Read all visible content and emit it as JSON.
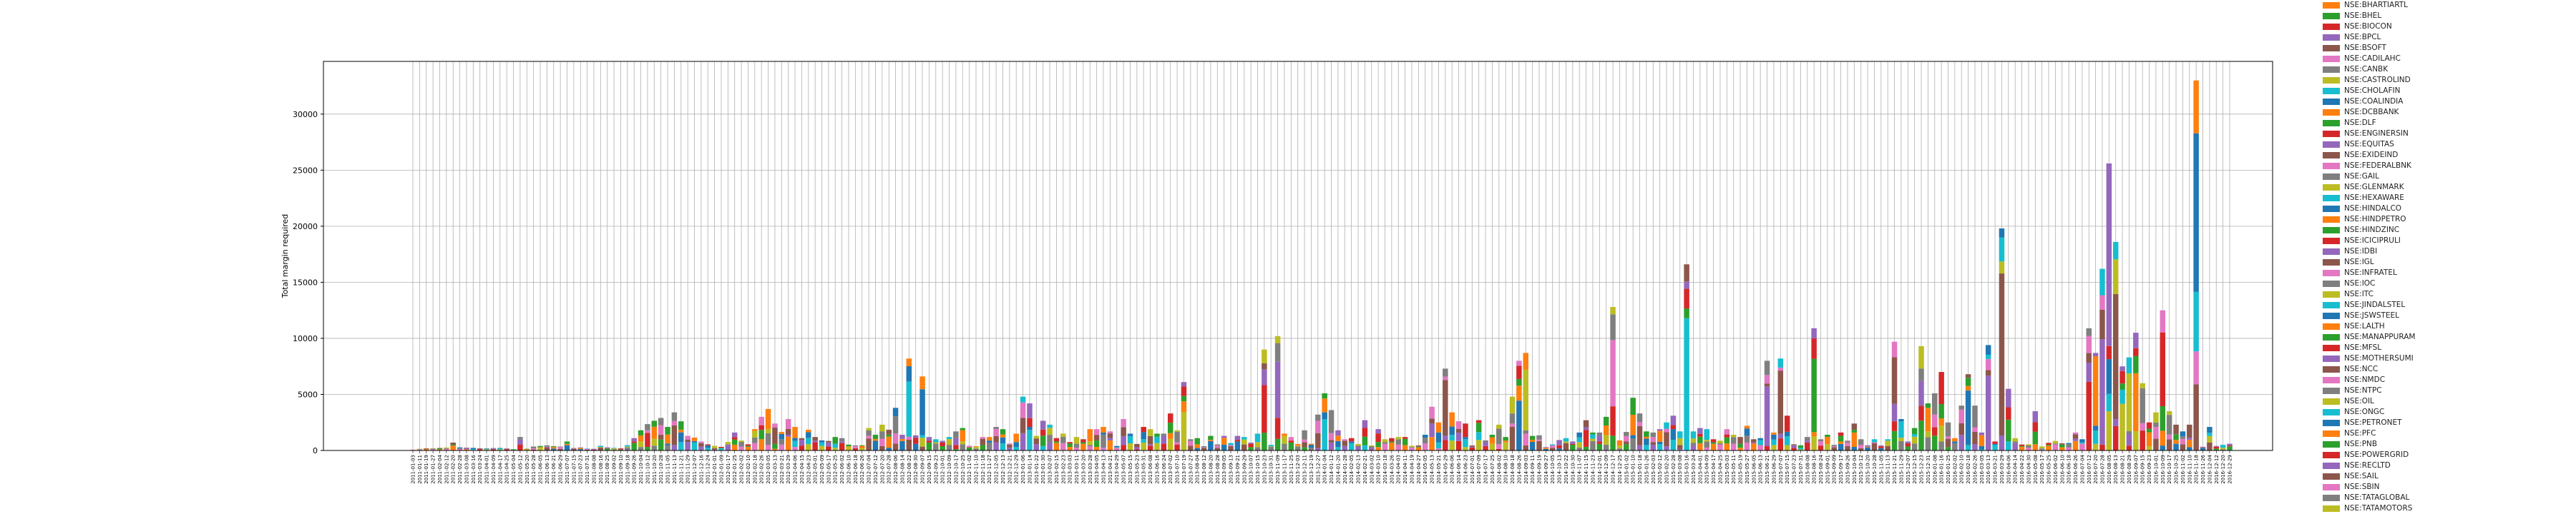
{
  "chart_data": {
    "type": "bar",
    "stacked": true,
    "ylabel": "Total margin required",
    "xlabel": "",
    "ylim": [
      0,
      34700
    ],
    "yticks": [
      0,
      5000,
      10000,
      15000,
      20000,
      25000,
      30000
    ],
    "grid": true,
    "legend_placement": "right",
    "date_range": [
      "2011-01-03",
      "2016-12-29"
    ],
    "n_bars": 272,
    "legend": [
      {
        "name": "NSE:BHARTIARTL",
        "color": "#ff7f0e"
      },
      {
        "name": "NSE:BHEL",
        "color": "#2ca02c"
      },
      {
        "name": "NSE:BIOCON",
        "color": "#d62728"
      },
      {
        "name": "NSE:BPCL",
        "color": "#9467bd"
      },
      {
        "name": "NSE:BSOFT",
        "color": "#8c564b"
      },
      {
        "name": "NSE:CADILAHC",
        "color": "#e377c2"
      },
      {
        "name": "NSE:CANBK",
        "color": "#7f7f7f"
      },
      {
        "name": "NSE:CASTROLIND",
        "color": "#bcbd22"
      },
      {
        "name": "NSE:CHOLAFIN",
        "color": "#17becf"
      },
      {
        "name": "NSE:COALINDIA",
        "color": "#1f77b4"
      },
      {
        "name": "NSE:DCBBANK",
        "color": "#ff7f0e"
      },
      {
        "name": "NSE:DLF",
        "color": "#2ca02c"
      },
      {
        "name": "NSE:ENGINERSIN",
        "color": "#d62728"
      },
      {
        "name": "NSE:EQUITAS",
        "color": "#9467bd"
      },
      {
        "name": "NSE:EXIDEIND",
        "color": "#8c564b"
      },
      {
        "name": "NSE:FEDERALBNK",
        "color": "#e377c2"
      },
      {
        "name": "NSE:GAIL",
        "color": "#7f7f7f"
      },
      {
        "name": "NSE:GLENMARK",
        "color": "#bcbd22"
      },
      {
        "name": "NSE:HEXAWARE",
        "color": "#17becf"
      },
      {
        "name": "NSE:HINDALCO",
        "color": "#1f77b4"
      },
      {
        "name": "NSE:HINDPETRO",
        "color": "#ff7f0e"
      },
      {
        "name": "NSE:HINDZINC",
        "color": "#2ca02c"
      },
      {
        "name": "NSE:ICICIPRULI",
        "color": "#d62728"
      },
      {
        "name": "NSE:IDBI",
        "color": "#9467bd"
      },
      {
        "name": "NSE:IGL",
        "color": "#8c564b"
      },
      {
        "name": "NSE:INFRATEL",
        "color": "#e377c2"
      },
      {
        "name": "NSE:IOC",
        "color": "#7f7f7f"
      },
      {
        "name": "NSE:ITC",
        "color": "#bcbd22"
      },
      {
        "name": "NSE:JINDALSTEL",
        "color": "#17becf"
      },
      {
        "name": "NSE:JSWSTEEL",
        "color": "#1f77b4"
      },
      {
        "name": "NSE:LALTH",
        "color": "#ff7f0e"
      },
      {
        "name": "NSE:MANAPPURAM",
        "color": "#2ca02c"
      },
      {
        "name": "NSE:MFSL",
        "color": "#d62728"
      },
      {
        "name": "NSE:MOTHERSUMI",
        "color": "#9467bd"
      },
      {
        "name": "NSE:NCC",
        "color": "#8c564b"
      },
      {
        "name": "NSE:NMDC",
        "color": "#e377c2"
      },
      {
        "name": "NSE:NTPC",
        "color": "#7f7f7f"
      },
      {
        "name": "NSE:OIL",
        "color": "#bcbd22"
      },
      {
        "name": "NSE:ONGC",
        "color": "#17becf"
      },
      {
        "name": "NSE:PETRONET",
        "color": "#1f77b4"
      },
      {
        "name": "NSE:PFC",
        "color": "#ff7f0e"
      },
      {
        "name": "NSE:PNB",
        "color": "#2ca02c"
      },
      {
        "name": "NSE:POWERGRID",
        "color": "#d62728"
      },
      {
        "name": "NSE:RECLTD",
        "color": "#9467bd"
      },
      {
        "name": "NSE:SAIL",
        "color": "#8c564b"
      },
      {
        "name": "NSE:SBIN",
        "color": "#e377c2"
      },
      {
        "name": "NSE:TATAGLOBAL",
        "color": "#7f7f7f"
      },
      {
        "name": "NSE:TATAMOTORS",
        "color": "#bcbd22"
      }
    ],
    "totals": [
      50,
      150,
      180,
      200,
      220,
      260,
      700,
      280,
      250,
      230,
      200,
      180,
      210,
      220,
      170,
      120,
      1200,
      150,
      350,
      400,
      460,
      380,
      350,
      800,
      220,
      270,
      180,
      150,
      420,
      280,
      240,
      200,
      470,
      1100,
      1800,
      2350,
      2650,
      2900,
      2100,
      3400,
      2600,
      1300,
      1150,
      800,
      550,
      410,
      320,
      760,
      1600,
      880,
      550,
      1900,
      3000,
      3700,
      2400,
      1650,
      2800,
      2100,
      1100,
      1850,
      1200,
      900,
      850,
      1200,
      1100,
      520,
      450,
      470,
      2000,
      1400,
      2300,
      1850,
      3800,
      1400,
      8200,
      1350,
      6600,
      1200,
      1000,
      860,
      1200,
      1700,
      2000,
      420,
      380,
      1200,
      1200,
      2100,
      1900,
      620,
      1500,
      4800,
      4200,
      1300,
      2650,
      2300,
      1100,
      1500,
      750,
      1200,
      1000,
      1900,
      1900,
      2100,
      1700,
      400,
      2800,
      1500,
      580,
      2100,
      1900,
      1500,
      1500,
      3300,
      1800,
      6100,
      1000,
      1100,
      380,
      1300,
      540,
      1300,
      660,
      1300,
      1200,
      700,
      1500,
      9000,
      500,
      10200,
      1500,
      1200,
      580,
      1800,
      600,
      3200,
      5100,
      3600,
      1800,
      1000,
      1100,
      580,
      2700,
      450,
      1900,
      1000,
      1100,
      1200,
      1200,
      420,
      450,
      1400,
      3900,
      2500,
      7300,
      3400,
      2600,
      2400,
      450,
      2700,
      900,
      1400,
      2300,
      1200,
      4800,
      8000,
      8700,
      1300,
      1350,
      300,
      550,
      930,
      1100,
      800,
      1600,
      2700,
      1600,
      1600,
      3000,
      12800,
      900,
      1650,
      4700,
      3300,
      1700,
      1600,
      1900,
      2500,
      3100,
      1700,
      16600,
      1700,
      2000,
      1900,
      1000,
      870,
      1900,
      1400,
      1200,
      2200,
      1000,
      1100,
      8000,
      1600,
      8200,
      3100,
      550,
      460,
      1200,
      10900,
      1000,
      1400,
      500,
      1600,
      870,
      2400,
      1000,
      460,
      1000,
      450,
      1000,
      9700,
      2800,
      800,
      2000,
      9300,
      4200,
      5100,
      7000,
      2500,
      1100,
      4000,
      6800,
      4000,
      1600,
      9400,
      800,
      19800,
      5500,
      1100,
      530,
      550,
      3500,
      360,
      680,
      850,
      640,
      660,
      1600,
      1000,
      10900,
      8700,
      16200,
      25600,
      18600,
      7500,
      8300,
      10500,
      6000,
      2500,
      3400,
      12500,
      3500,
      2300,
      1700,
      2300,
      33000,
      330,
      2100,
      400,
      500,
      600
    ]
  }
}
